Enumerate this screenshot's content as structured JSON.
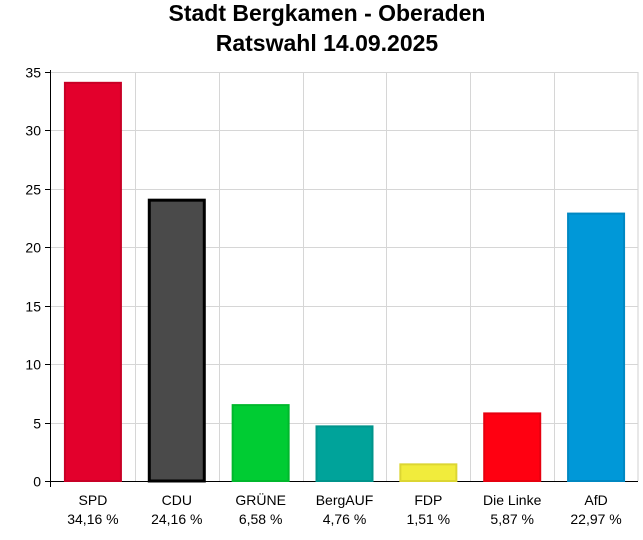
{
  "chart_data": {
    "type": "bar",
    "title": "Stadt Bergkamen - Oberaden",
    "subtitle": "Ratswahl 14.09.2025",
    "ylim": [
      0,
      35
    ],
    "yticks": [
      "0",
      "5",
      "10",
      "15",
      "20",
      "25",
      "30",
      "35"
    ],
    "grid": true,
    "categories": [
      "SPD",
      "CDU",
      "GRÜNE",
      "BergAUF",
      "FDP",
      "Die Linke",
      "AfD"
    ],
    "value_labels": [
      "34,16 %",
      "24,16 %",
      "6,58 %",
      "4,76 %",
      "1,51 %",
      "5,87 %",
      "22,97 %"
    ],
    "values": [
      34.16,
      24.16,
      6.58,
      4.76,
      1.51,
      5.87,
      22.97
    ],
    "colors": [
      "#e3002c",
      "#4a4a4a",
      "#00cc33",
      "#00a39a",
      "#f1ec3c",
      "#ff0011",
      "#0098d8"
    ],
    "borders": [
      "#c80026",
      "#000000",
      "#00b82c",
      "#00948b",
      "#dcd632",
      "#e6000f",
      "#0088c2"
    ]
  }
}
